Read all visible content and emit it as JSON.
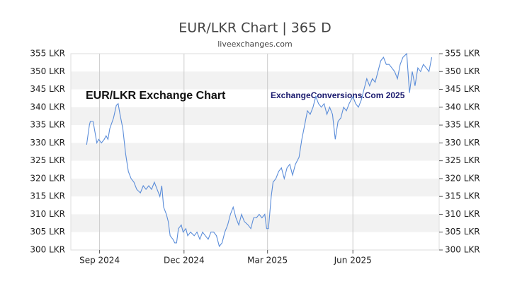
{
  "chart_data": {
    "type": "line",
    "title": "EUR/LKR Chart | 365 D",
    "subtitle": "liveexchanges.com",
    "annotations": [
      "EUR/LKR Exchange Chart",
      "ExchangeConversions.Com 2025"
    ],
    "xlim": [
      -31,
      366
    ],
    "xticks": [
      {
        "value": 0,
        "label": "Sep 2024"
      },
      {
        "value": 91,
        "label": "Dec 2024"
      },
      {
        "value": 181,
        "label": "Mar 2025"
      },
      {
        "value": 273,
        "label": "Jun 2025"
      }
    ],
    "ylim": [
      300,
      355
    ],
    "yticks": [
      {
        "value": 300,
        "label": "300 LKR"
      },
      {
        "value": 305,
        "label": "305 LKR"
      },
      {
        "value": 310,
        "label": "310 LKR"
      },
      {
        "value": 315,
        "label": "315 LKR"
      },
      {
        "value": 320,
        "label": "320 LKR"
      },
      {
        "value": 325,
        "label": "325 LKR"
      },
      {
        "value": 330,
        "label": "330 LKR"
      },
      {
        "value": 335,
        "label": "335 LKR"
      },
      {
        "value": 340,
        "label": "340 LKR"
      },
      {
        "value": 345,
        "label": "345 LKR"
      },
      {
        "value": 350,
        "label": "350 LKR"
      },
      {
        "value": 355,
        "label": "355 LKR"
      }
    ],
    "grid": true,
    "series": [
      {
        "name": "EUR/LKR",
        "color": "#5b8dd9",
        "x": [
          -14,
          -11,
          -10,
          -7,
          -5,
          -3,
          -1,
          2,
          5,
          7,
          9,
          11,
          15,
          18,
          20,
          22,
          25,
          28,
          31,
          34,
          37,
          40,
          44,
          47,
          50,
          53,
          56,
          59,
          62,
          65,
          67,
          69,
          72,
          74,
          76,
          79,
          81,
          83,
          85,
          88,
          90,
          93,
          95,
          98,
          102,
          105,
          108,
          111,
          114,
          117,
          120,
          123,
          126,
          129,
          132,
          135,
          138,
          141,
          144,
          147,
          150,
          153,
          156,
          160,
          163,
          166,
          169,
          172,
          175,
          178,
          180,
          182,
          185,
          187,
          190,
          193,
          196,
          199,
          202,
          205,
          208,
          211,
          215,
          218,
          221,
          224,
          227,
          230,
          233,
          236,
          239,
          242,
          245,
          248,
          251,
          254,
          257,
          260,
          263,
          266,
          269,
          273,
          276,
          279,
          282,
          285,
          288,
          291,
          294,
          297,
          300,
          303,
          306,
          309,
          312,
          315,
          318,
          321,
          324,
          327,
          331,
          334,
          337,
          340,
          343,
          346,
          349,
          352,
          355,
          358
        ],
        "values": [
          329.5,
          335,
          336,
          336,
          333,
          330,
          331,
          330,
          331,
          332,
          331,
          334,
          337,
          340.5,
          341,
          338,
          334,
          327,
          322,
          320,
          319,
          317,
          316,
          318,
          317,
          318,
          317,
          319,
          317,
          315,
          318,
          312,
          310,
          308,
          304,
          303,
          302,
          302,
          306,
          307,
          305,
          306,
          304,
          305,
          304,
          305,
          303,
          305,
          304,
          303,
          305,
          305,
          304,
          301,
          302,
          305,
          307,
          310,
          312,
          309,
          307,
          310,
          308,
          307,
          306,
          309,
          309,
          310,
          309,
          310,
          306,
          306,
          315,
          319,
          320,
          322,
          323,
          320,
          323,
          324,
          321,
          324,
          326,
          331,
          335,
          339,
          338,
          340,
          343,
          341,
          340,
          341,
          338,
          340,
          338,
          331,
          336,
          337,
          340,
          339,
          341,
          343,
          341,
          340,
          342,
          345,
          348,
          346,
          348,
          347,
          350,
          353,
          354,
          352,
          352,
          351,
          350,
          348,
          352,
          354,
          355,
          344,
          350,
          346,
          351,
          350,
          352,
          351,
          350,
          354
        ]
      }
    ]
  }
}
